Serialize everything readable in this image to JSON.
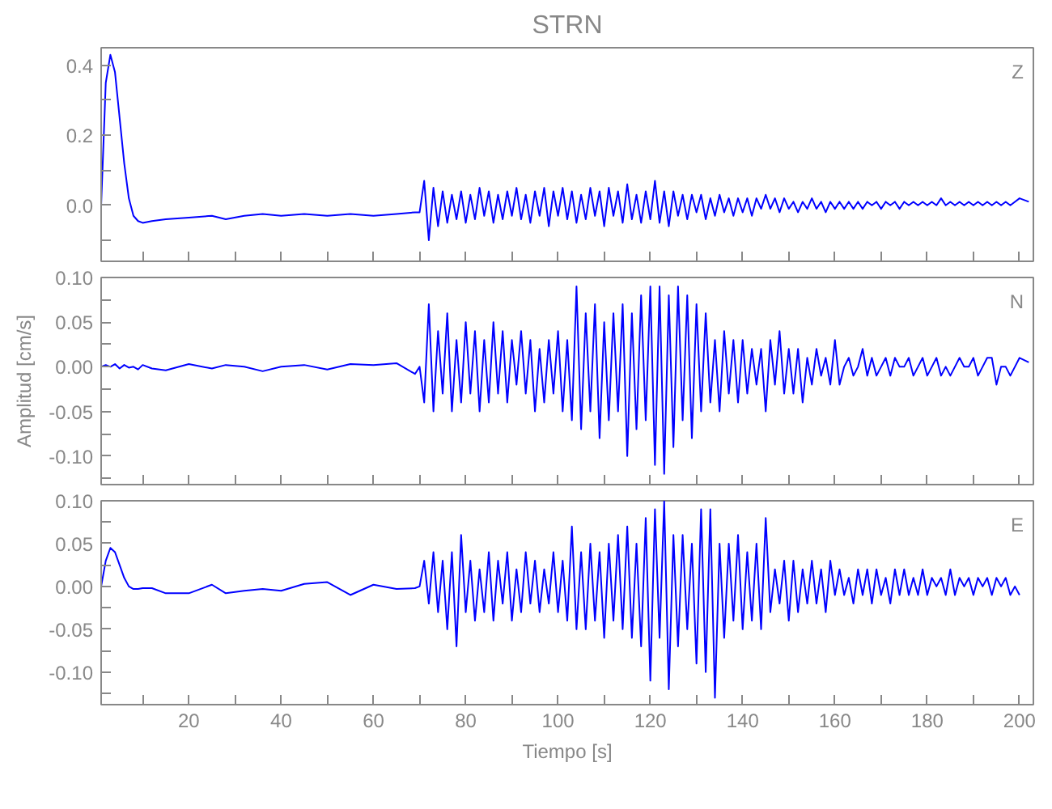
{
  "chart_data": [
    {
      "type": "line",
      "title": "STRN",
      "annotations": [
        "Z"
      ],
      "tick_labels": "y",
      "grid": false,
      "marker": "none",
      "line_style": "solid",
      "xlim": [
        1,
        203
      ],
      "ylim": [
        -0.16,
        0.45
      ],
      "xticks": [
        {
          "value": 10,
          "label": null
        },
        {
          "value": 20,
          "label": null
        },
        {
          "value": 30,
          "label": null
        },
        {
          "value": 40,
          "label": null
        },
        {
          "value": 50,
          "label": null
        },
        {
          "value": 60,
          "label": null
        },
        {
          "value": 70,
          "label": null
        },
        {
          "value": 80,
          "label": null
        },
        {
          "value": 90,
          "label": null
        },
        {
          "value": 100,
          "label": null
        },
        {
          "value": 110,
          "label": null
        },
        {
          "value": 120,
          "label": null
        },
        {
          "value": 130,
          "label": null
        },
        {
          "value": 140,
          "label": null
        },
        {
          "value": 150,
          "label": null
        },
        {
          "value": 160,
          "label": null
        },
        {
          "value": 170,
          "label": null
        },
        {
          "value": 180,
          "label": null
        },
        {
          "value": 190,
          "label": null
        },
        {
          "value": 200,
          "label": null
        }
      ],
      "yticks": [
        {
          "value": -0.1,
          "label": null
        },
        {
          "value": 0,
          "label": "0.0"
        },
        {
          "value": 0.1,
          "label": null
        },
        {
          "value": 0.2,
          "label": "0.2"
        },
        {
          "value": 0.3,
          "label": null
        },
        {
          "value": 0.4,
          "label": "0.4"
        }
      ],
      "x": [
        1,
        2,
        3,
        4,
        5,
        6,
        7,
        8,
        9,
        10,
        12,
        15,
        20,
        25,
        28,
        32,
        36,
        40,
        45,
        50,
        55,
        60,
        65,
        69,
        70,
        71,
        72,
        73,
        74,
        75,
        76,
        77,
        78,
        79,
        80,
        81,
        82,
        83,
        84,
        85,
        86,
        87,
        88,
        89,
        90,
        91,
        92,
        93,
        94,
        95,
        96,
        97,
        98,
        99,
        100,
        101,
        102,
        103,
        104,
        105,
        106,
        107,
        108,
        109,
        110,
        111,
        112,
        113,
        114,
        115,
        116,
        117,
        118,
        119,
        120,
        121,
        122,
        123,
        124,
        125,
        126,
        127,
        128,
        129,
        130,
        131,
        132,
        133,
        134,
        135,
        136,
        137,
        138,
        139,
        140,
        141,
        142,
        143,
        144,
        145,
        146,
        147,
        148,
        149,
        150,
        151,
        152,
        153,
        154,
        155,
        156,
        157,
        158,
        159,
        160,
        161,
        162,
        163,
        164,
        165,
        166,
        167,
        168,
        169,
        170,
        171,
        172,
        173,
        174,
        175,
        176,
        177,
        178,
        179,
        180,
        181,
        182,
        183,
        184,
        185,
        186,
        187,
        188,
        189,
        190,
        191,
        192,
        193,
        194,
        195,
        196,
        197,
        198,
        199,
        200,
        202
      ],
      "series": [
        {
          "color": "#0000ff",
          "values": [
            0.0,
            0.35,
            0.43,
            0.38,
            0.25,
            0.12,
            0.02,
            -0.03,
            -0.045,
            -0.05,
            -0.045,
            -0.04,
            -0.035,
            -0.03,
            -0.04,
            -0.03,
            -0.025,
            -0.03,
            -0.025,
            -0.03,
            -0.025,
            -0.03,
            -0.025,
            -0.02,
            -0.02,
            0.07,
            -0.1,
            0.05,
            -0.06,
            0.04,
            -0.05,
            0.03,
            -0.04,
            0.04,
            -0.05,
            0.03,
            -0.04,
            0.05,
            -0.03,
            0.04,
            -0.05,
            0.03,
            -0.04,
            0.04,
            -0.03,
            0.05,
            -0.04,
            0.03,
            -0.05,
            0.04,
            -0.03,
            0.05,
            -0.06,
            0.04,
            -0.03,
            0.05,
            -0.04,
            0.04,
            -0.05,
            0.03,
            -0.04,
            0.05,
            -0.03,
            0.04,
            -0.06,
            0.05,
            -0.03,
            0.04,
            -0.05,
            0.06,
            -0.04,
            0.03,
            -0.05,
            0.04,
            -0.04,
            0.07,
            -0.05,
            0.04,
            -0.06,
            0.04,
            -0.03,
            0.03,
            -0.04,
            0.03,
            -0.02,
            0.03,
            -0.04,
            0.02,
            -0.03,
            0.03,
            -0.02,
            0.02,
            -0.03,
            0.02,
            -0.02,
            0.02,
            -0.03,
            0.02,
            -0.01,
            0.03,
            -0.01,
            0.02,
            -0.02,
            0.02,
            -0.01,
            0.01,
            -0.02,
            0.01,
            -0.01,
            0.02,
            -0.01,
            0.01,
            -0.02,
            0.01,
            -0.01,
            0.01,
            -0.01,
            0.01,
            -0.01,
            0.01,
            -0.01,
            0.01,
            0.0,
            0.01,
            -0.01,
            0.01,
            0.0,
            0.01,
            -0.01,
            0.01,
            0.0,
            0.01,
            0.0,
            0.01,
            0.0,
            0.01,
            0.0,
            0.02,
            0.0,
            0.01,
            0.0,
            0.01,
            0.0,
            0.01,
            0.0,
            0.01,
            0.0,
            0.01,
            0.0,
            0.01,
            0.0,
            0.01,
            0.0,
            0.01,
            0.02,
            0.01
          ]
        }
      ]
    },
    {
      "type": "line",
      "ylabel": "Amplitud [cm/s]",
      "annotations": [
        "N"
      ],
      "tick_labels": "y",
      "grid": false,
      "marker": "none",
      "line_style": "solid",
      "xlim": [
        1,
        203
      ],
      "ylim": [
        -0.132,
        0.1
      ],
      "xticks": [
        {
          "value": 10,
          "label": null
        },
        {
          "value": 20,
          "label": null
        },
        {
          "value": 30,
          "label": null
        },
        {
          "value": 40,
          "label": null
        },
        {
          "value": 50,
          "label": null
        },
        {
          "value": 60,
          "label": null
        },
        {
          "value": 70,
          "label": null
        },
        {
          "value": 80,
          "label": null
        },
        {
          "value": 90,
          "label": null
        },
        {
          "value": 100,
          "label": null
        },
        {
          "value": 110,
          "label": null
        },
        {
          "value": 120,
          "label": null
        },
        {
          "value": 130,
          "label": null
        },
        {
          "value": 140,
          "label": null
        },
        {
          "value": 150,
          "label": null
        },
        {
          "value": 160,
          "label": null
        },
        {
          "value": 170,
          "label": null
        },
        {
          "value": 180,
          "label": null
        },
        {
          "value": 190,
          "label": null
        },
        {
          "value": 200,
          "label": null
        }
      ],
      "yticks": [
        {
          "value": -0.125,
          "label": null
        },
        {
          "value": -0.1,
          "label": "-0.10"
        },
        {
          "value": -0.075,
          "label": null
        },
        {
          "value": -0.05,
          "label": "-0.05"
        },
        {
          "value": -0.025,
          "label": null
        },
        {
          "value": 0,
          "label": "0.00"
        },
        {
          "value": 0.025,
          "label": null
        },
        {
          "value": 0.05,
          "label": "0.05"
        },
        {
          "value": 0.075,
          "label": null
        },
        {
          "value": 0.1,
          "label": "0.10"
        }
      ],
      "x": [
        1,
        2,
        3,
        4,
        5,
        6,
        7,
        8,
        9,
        10,
        12,
        15,
        20,
        25,
        28,
        32,
        36,
        40,
        45,
        50,
        55,
        60,
        65,
        69,
        70,
        71,
        72,
        73,
        74,
        75,
        76,
        77,
        78,
        79,
        80,
        81,
        82,
        83,
        84,
        85,
        86,
        87,
        88,
        89,
        90,
        91,
        92,
        93,
        94,
        95,
        96,
        97,
        98,
        99,
        100,
        101,
        102,
        103,
        104,
        105,
        106,
        107,
        108,
        109,
        110,
        111,
        112,
        113,
        114,
        115,
        116,
        117,
        118,
        119,
        120,
        121,
        122,
        123,
        124,
        125,
        126,
        127,
        128,
        129,
        130,
        131,
        132,
        133,
        134,
        135,
        136,
        137,
        138,
        139,
        140,
        141,
        142,
        143,
        144,
        145,
        146,
        147,
        148,
        149,
        150,
        151,
        152,
        153,
        154,
        155,
        156,
        157,
        158,
        159,
        160,
        161,
        162,
        163,
        164,
        165,
        166,
        167,
        168,
        169,
        170,
        171,
        172,
        173,
        174,
        175,
        176,
        177,
        178,
        179,
        180,
        181,
        182,
        183,
        184,
        185,
        186,
        187,
        188,
        189,
        190,
        191,
        192,
        193,
        194,
        195,
        196,
        197,
        198,
        199,
        200,
        202
      ],
      "series": [
        {
          "color": "#0000ff",
          "values": [
            0.0,
            0.002,
            0.0,
            0.003,
            -0.002,
            0.002,
            -0.001,
            0.0,
            -0.003,
            0.002,
            -0.002,
            -0.004,
            0.003,
            -0.002,
            0.002,
            0.0,
            -0.005,
            0.0,
            0.002,
            -0.003,
            0.003,
            0.002,
            0.004,
            -0.008,
            0.0,
            -0.04,
            0.07,
            -0.05,
            0.04,
            -0.03,
            0.06,
            -0.05,
            0.03,
            -0.04,
            0.05,
            -0.03,
            0.04,
            -0.05,
            0.03,
            -0.04,
            0.05,
            -0.03,
            0.04,
            -0.04,
            0.03,
            -0.02,
            0.04,
            -0.03,
            0.03,
            -0.05,
            0.02,
            -0.04,
            0.03,
            -0.03,
            0.04,
            -0.05,
            0.03,
            -0.06,
            0.09,
            -0.07,
            0.06,
            -0.05,
            0.07,
            -0.08,
            0.05,
            -0.06,
            0.06,
            -0.05,
            0.07,
            -0.1,
            0.06,
            -0.07,
            0.08,
            -0.06,
            0.09,
            -0.11,
            0.09,
            -0.12,
            0.08,
            -0.09,
            0.09,
            -0.06,
            0.08,
            -0.08,
            0.07,
            -0.05,
            0.06,
            -0.04,
            0.03,
            -0.05,
            0.04,
            -0.03,
            0.03,
            -0.04,
            0.03,
            -0.03,
            0.02,
            -0.02,
            0.02,
            -0.05,
            0.03,
            -0.02,
            0.04,
            -0.03,
            0.02,
            -0.03,
            0.02,
            -0.04,
            0.01,
            -0.02,
            0.02,
            -0.01,
            0.01,
            -0.02,
            0.03,
            -0.02,
            0.0,
            0.01,
            -0.01,
            0.0,
            0.02,
            -0.01,
            0.01,
            -0.01,
            0.0,
            0.01,
            -0.01,
            0.01,
            0.0,
            0.0,
            0.01,
            -0.01,
            0.0,
            0.01,
            -0.01,
            0.0,
            0.01,
            -0.01,
            0.0,
            -0.01,
            0.0,
            0.01,
            0.0,
            0.0,
            0.01,
            -0.01,
            0.0,
            0.01,
            0.01,
            -0.02,
            0.0,
            0.0,
            -0.01,
            0.0,
            0.01,
            0.005
          ]
        }
      ]
    },
    {
      "type": "line",
      "xlabel": "Tiempo [s]",
      "annotations": [
        "E"
      ],
      "grid": false,
      "marker": "none",
      "line_style": "solid",
      "xlim": [
        1,
        203
      ],
      "ylim": [
        -0.138,
        0.1
      ],
      "xticks": [
        {
          "value": 10,
          "label": null
        },
        20,
        {
          "value": 30,
          "label": null
        },
        40,
        {
          "value": 50,
          "label": null
        },
        60,
        {
          "value": 70,
          "label": null
        },
        80,
        {
          "value": 90,
          "label": null
        },
        100,
        {
          "value": 110,
          "label": null
        },
        120,
        {
          "value": 130,
          "label": null
        },
        140,
        {
          "value": 150,
          "label": null
        },
        160,
        {
          "value": 170,
          "label": null
        },
        180,
        {
          "value": 190,
          "label": null
        },
        200
      ],
      "yticks": [
        {
          "value": -0.125,
          "label": null
        },
        {
          "value": -0.1,
          "label": "-0.10"
        },
        {
          "value": -0.075,
          "label": null
        },
        {
          "value": -0.05,
          "label": "-0.05"
        },
        {
          "value": -0.025,
          "label": null
        },
        {
          "value": 0,
          "label": "0.00"
        },
        {
          "value": 0.025,
          "label": null
        },
        {
          "value": 0.05,
          "label": "0.05"
        },
        {
          "value": 0.075,
          "label": null
        },
        {
          "value": 0.1,
          "label": "0.10"
        }
      ],
      "x": [
        1,
        2,
        3,
        4,
        5,
        6,
        7,
        8,
        9,
        10,
        12,
        15,
        20,
        25,
        28,
        32,
        36,
        40,
        45,
        50,
        55,
        60,
        65,
        69,
        70,
        71,
        72,
        73,
        74,
        75,
        76,
        77,
        78,
        79,
        80,
        81,
        82,
        83,
        84,
        85,
        86,
        87,
        88,
        89,
        90,
        91,
        92,
        93,
        94,
        95,
        96,
        97,
        98,
        99,
        100,
        101,
        102,
        103,
        104,
        105,
        106,
        107,
        108,
        109,
        110,
        111,
        112,
        113,
        114,
        115,
        116,
        117,
        118,
        119,
        120,
        121,
        122,
        123,
        124,
        125,
        126,
        127,
        128,
        129,
        130,
        131,
        132,
        133,
        134,
        135,
        136,
        137,
        138,
        139,
        140,
        141,
        142,
        143,
        144,
        145,
        146,
        147,
        148,
        149,
        150,
        151,
        152,
        153,
        154,
        155,
        156,
        157,
        158,
        159,
        160,
        161,
        162,
        163,
        164,
        165,
        166,
        167,
        168,
        169,
        170,
        171,
        172,
        173,
        174,
        175,
        176,
        177,
        178,
        179,
        180,
        181,
        182,
        183,
        184,
        185,
        186,
        187,
        188,
        189,
        190,
        191,
        192,
        193,
        194,
        195,
        196,
        197,
        198,
        199,
        200
      ],
      "series": [
        {
          "color": "#0000ff",
          "values": [
            0.0,
            0.03,
            0.045,
            0.04,
            0.025,
            0.01,
            0.0,
            -0.003,
            -0.003,
            -0.002,
            -0.002,
            -0.008,
            -0.008,
            0.002,
            -0.008,
            -0.005,
            -0.003,
            -0.005,
            0.003,
            0.005,
            -0.01,
            0.002,
            -0.003,
            -0.002,
            0.0,
            0.03,
            -0.02,
            0.04,
            -0.03,
            0.03,
            -0.05,
            0.04,
            -0.07,
            0.06,
            -0.03,
            0.03,
            -0.04,
            0.02,
            -0.03,
            0.04,
            -0.04,
            0.03,
            -0.02,
            0.04,
            -0.04,
            0.02,
            -0.03,
            0.04,
            -0.02,
            0.03,
            -0.03,
            0.02,
            -0.02,
            0.04,
            -0.03,
            0.03,
            -0.04,
            0.07,
            -0.05,
            0.04,
            -0.05,
            0.05,
            -0.04,
            0.04,
            -0.06,
            0.05,
            -0.04,
            0.06,
            -0.05,
            0.07,
            -0.06,
            0.05,
            -0.07,
            0.08,
            -0.11,
            0.09,
            -0.06,
            0.1,
            -0.12,
            0.06,
            -0.07,
            0.06,
            -0.05,
            0.05,
            -0.09,
            0.09,
            -0.1,
            0.09,
            -0.13,
            0.05,
            -0.06,
            0.05,
            -0.04,
            0.06,
            -0.05,
            0.04,
            -0.04,
            0.05,
            -0.05,
            0.08,
            -0.03,
            0.02,
            -0.02,
            0.03,
            -0.04,
            0.03,
            -0.03,
            0.02,
            -0.02,
            0.03,
            -0.02,
            0.02,
            -0.03,
            0.03,
            -0.01,
            0.02,
            -0.01,
            0.01,
            -0.02,
            0.02,
            -0.01,
            0.02,
            -0.02,
            0.02,
            -0.01,
            0.01,
            -0.02,
            0.02,
            -0.01,
            0.02,
            -0.01,
            0.01,
            -0.01,
            0.02,
            -0.01,
            0.01,
            0.0,
            0.01,
            -0.01,
            0.02,
            -0.01,
            0.01,
            0.0,
            0.01,
            -0.01,
            0.01,
            0.0,
            0.01,
            -0.01,
            0.01,
            0.0,
            0.01,
            -0.01,
            0.0,
            -0.01
          ]
        }
      ]
    }
  ]
}
